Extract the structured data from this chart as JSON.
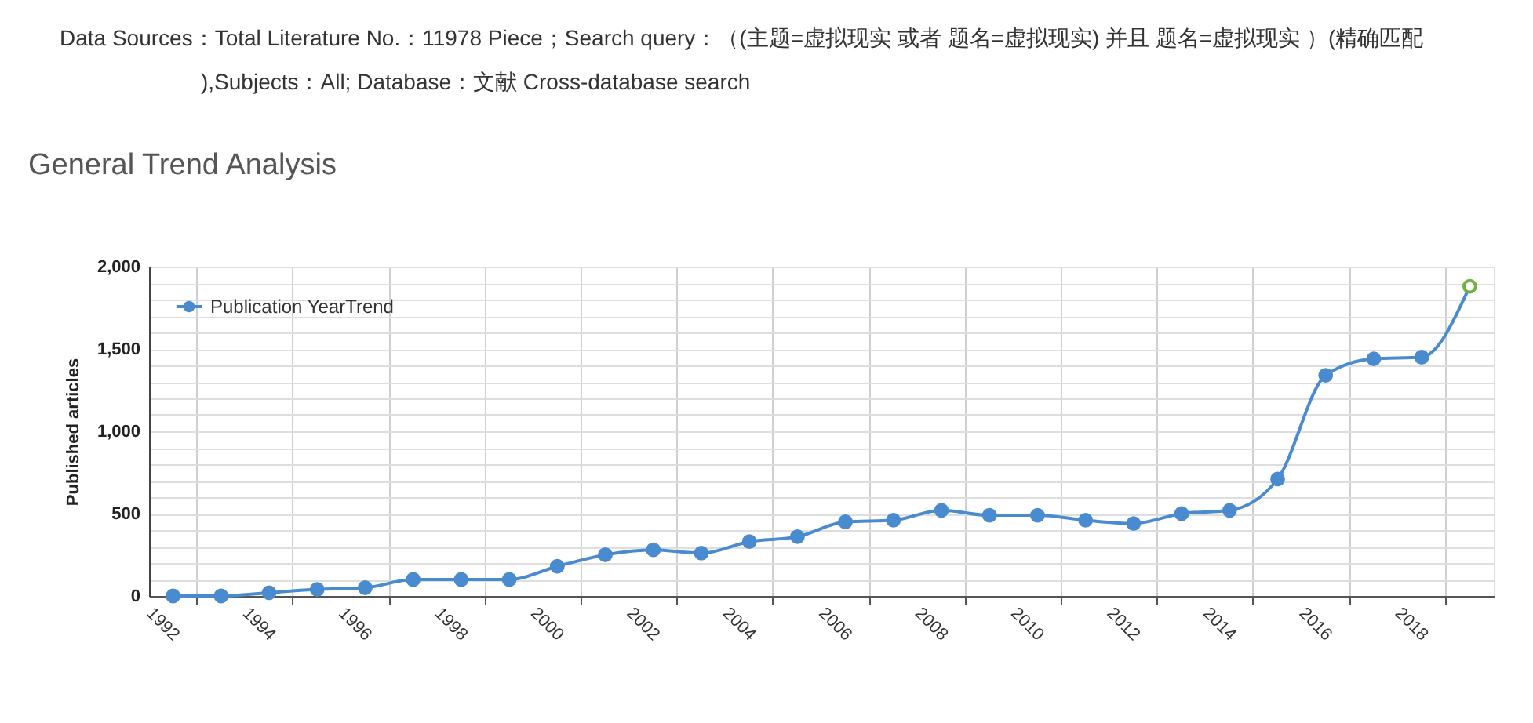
{
  "chart_data": {
    "type": "line",
    "title": "General Trend Analysis",
    "ylabel": "Published articles",
    "annotations": [
      "Data Sources：Total Literature No.：11978 Piece；Search query：（(主题=虚拟现实 或者 题名=虚拟现实) 并且 题名=虚拟现实 ）(精确匹配),Subjects：All; Database：文献 Cross-database search"
    ],
    "categories": [
      "1992",
      null,
      "1994",
      null,
      "1996",
      null,
      "1998",
      null,
      "2000",
      null,
      "2002",
      null,
      "2004",
      null,
      "2006",
      null,
      "2008",
      null,
      "2010",
      null,
      "2012",
      null,
      "2014",
      null,
      "2016",
      null,
      "2018",
      null
    ],
    "series": [
      {
        "name": "Publication YearTrend",
        "color": "#4a8bd0",
        "colors": [
          "#4a8bd0",
          "#4a8bd0",
          "#4a8bd0",
          "#4a8bd0",
          "#4a8bd0",
          "#4a8bd0",
          "#4a8bd0",
          "#4a8bd0",
          "#4a8bd0",
          "#4a8bd0",
          "#4a8bd0",
          "#4a8bd0",
          "#4a8bd0",
          "#4a8bd0",
          "#4a8bd0",
          "#4a8bd0",
          "#4a8bd0",
          "#4a8bd0",
          "#4a8bd0",
          "#4a8bd0",
          "#4a8bd0",
          "#4a8bd0",
          "#4a8bd0",
          "#4a8bd0",
          "#4a8bd0",
          "#4a8bd0",
          "#4a8bd0",
          "#72b043"
        ],
        "values": [
          0,
          0,
          20,
          40,
          50,
          100,
          100,
          100,
          180,
          250,
          280,
          260,
          330,
          360,
          450,
          460,
          520,
          490,
          490,
          460,
          440,
          500,
          520,
          710,
          1340,
          1440,
          1450,
          1880
        ]
      }
    ],
    "ylim": [
      0,
      2000
    ],
    "yticks": [
      0,
      {
        "value": 100,
        "label": null
      },
      {
        "value": 200,
        "label": null
      },
      {
        "value": 300,
        "label": null
      },
      {
        "value": 400,
        "label": null
      },
      {
        "value": 500,
        "label": "500"
      },
      {
        "value": 600,
        "label": null
      },
      {
        "value": 700,
        "label": null
      },
      {
        "value": 800,
        "label": null
      },
      {
        "value": 900,
        "label": null
      },
      {
        "value": 1000,
        "label": "1,000"
      },
      {
        "value": 1100,
        "label": null
      },
      {
        "value": 1200,
        "label": null
      },
      {
        "value": 1300,
        "label": null
      },
      {
        "value": 1400,
        "label": null
      },
      {
        "value": 1500,
        "label": "1,500"
      },
      {
        "value": 1600,
        "label": null
      },
      {
        "value": 1700,
        "label": null
      },
      {
        "value": 1800,
        "label": null
      },
      {
        "value": 1900,
        "label": null
      },
      {
        "value": 2000,
        "label": "2,000"
      }
    ],
    "grid": true,
    "legend": "top left",
    "marker": "circle",
    "line_style": "solid"
  }
}
